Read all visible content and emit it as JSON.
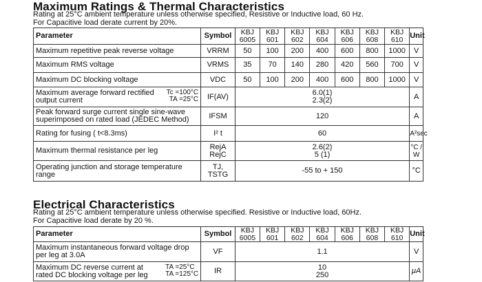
{
  "section1": {
    "title": "Maximum Ratings & Thermal Characteristics",
    "note_line1": "Rating at 25°C ambient temperature unless otherwise specified, Resistive or Inductive load, 60 Hz.",
    "note_line2": "For Capacitive load derate current by 20%.",
    "header": {
      "parameter": "Parameter",
      "symbol": "Symbol",
      "unit": "Unit",
      "models": [
        [
          "KBJ",
          "6005"
        ],
        [
          "KBJ",
          "601"
        ],
        [
          "KBJ",
          "602"
        ],
        [
          "KBJ",
          "604"
        ],
        [
          "KBJ",
          "606"
        ],
        [
          "KBJ",
          "608"
        ],
        [
          "KBJ",
          "610"
        ]
      ]
    },
    "rows_per_model": [
      {
        "param": "Maximum repetitive peak reverse voltage",
        "symbol": "VRRM",
        "values": [
          "50",
          "100",
          "200",
          "400",
          "600",
          "800",
          "1000"
        ],
        "unit": "V"
      },
      {
        "param": "Maximum RMS voltage",
        "symbol": "VRMS",
        "values": [
          "35",
          "70",
          "140",
          "280",
          "420",
          "560",
          "700"
        ],
        "unit": "V"
      },
      {
        "param": "Maximum DC blocking voltage",
        "symbol": "VDC",
        "values": [
          "50",
          "100",
          "200",
          "400",
          "600",
          "800",
          "1000"
        ],
        "unit": "V"
      }
    ],
    "row_avg_current": {
      "param_line1": "Maximum average forward rectified",
      "param_line2": "output current",
      "cond1": "Tc =100°C",
      "cond2": "TA =25°C",
      "symbol": "IF(AV)",
      "value1": "6.0(1)",
      "value2": "2.3(2)",
      "unit": "A"
    },
    "row_surge": {
      "param_line1": "Peak forward surge current single sine-wave",
      "param_line2": "superimposed on rated load (JEDEC Method)",
      "symbol": "IFSM",
      "value": "120",
      "unit": "A"
    },
    "row_fusing": {
      "param": "Rating for fusing ( t<8.3ms)",
      "symbol": "I² t",
      "value": "60",
      "unit": "A²sec"
    },
    "row_thermal": {
      "param": "Maximum thermal resistance per leg",
      "symbol1": "RejA",
      "symbol2": "RejC",
      "value1": "2.6(2)",
      "value2": "5 (1)",
      "unit": "°C / W"
    },
    "row_temp": {
      "param_line1": "Operating junction and storage temperature",
      "param_line2": "range",
      "symbol1": "TJ,",
      "symbol2": "TSTG",
      "value": "-55 to + 150",
      "unit": "°C"
    }
  },
  "section2": {
    "title": "Electrical Characteristics",
    "note_line1": "Rating at 25°C ambient temperature unless otherwise specified. Resistive or Inductive load, 60Hz.",
    "note_line2": "For Capacitive load derate by 20 %.",
    "header": {
      "parameter": "Parameter",
      "symbol": "Symbol",
      "unit": "Unit",
      "models": [
        [
          "KBJ",
          "6005"
        ],
        [
          "KBJ",
          "601"
        ],
        [
          "KBJ",
          "602"
        ],
        [
          "KBJ",
          "604"
        ],
        [
          "KBJ",
          "606"
        ],
        [
          "KBJ",
          "608"
        ],
        [
          "KBJ",
          "610"
        ]
      ]
    },
    "row_vf": {
      "param_line1": "Maximum instantaneous forward voltage drop",
      "param_line2": "per leg at 3.0A",
      "symbol": "VF",
      "value": "1.1",
      "unit": "V"
    },
    "row_ir": {
      "param_line1": "Maximum DC reverse current at",
      "param_line2": "rated DC blocking voltage per leg",
      "cond1": "TA =25°C",
      "cond2": "TA =125°C",
      "symbol": "IR",
      "value1": "10",
      "value2": "250",
      "unit": "μA"
    }
  }
}
